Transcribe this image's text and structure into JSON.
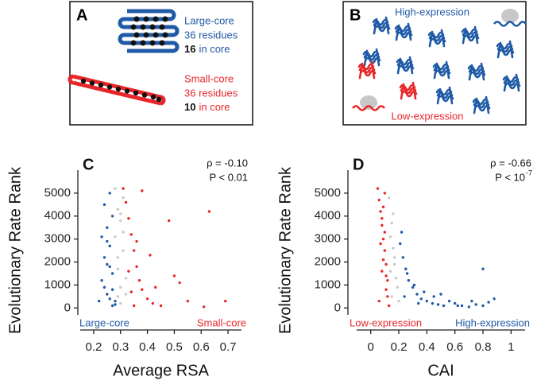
{
  "diagrams": {
    "panel_a": {
      "letter": "A",
      "large": {
        "name": "Large-core",
        "residues": "36 residues",
        "count": "16",
        "suffix": "in core"
      },
      "small": {
        "name": "Small-core",
        "residues": "36 residues",
        "count": "10",
        "suffix": "in core"
      }
    },
    "panel_b": {
      "letter": "B",
      "high": "High-expression",
      "low": "Low-expression"
    }
  },
  "chart_data": [
    {
      "type": "scatter",
      "panel": "C",
      "stats": [
        "ρ = -0.10",
        "P < 0.01"
      ],
      "xlabel": "Average RSA",
      "ylabel": "Evolutionary Rate Rank",
      "xlim": [
        0.15,
        0.75
      ],
      "ylim": [
        -300,
        6000
      ],
      "xticks": [
        0.2,
        0.3,
        0.4,
        0.5,
        0.6,
        0.7
      ],
      "yticks": [
        0,
        1000,
        2000,
        3000,
        4000,
        5000
      ],
      "series": [
        {
          "name": "Large-core",
          "color": "#1f5aa6",
          "corner": "left",
          "x": [
            0.22,
            0.24,
            0.25,
            0.26,
            0.27,
            0.23,
            0.25,
            0.26,
            0.28,
            0.24,
            0.27,
            0.26,
            0.25,
            0.23,
            0.27,
            0.28,
            0.26,
            0.24,
            0.25,
            0.27
          ],
          "values": [
            300,
            4500,
            2900,
            1800,
            800,
            1200,
            3500,
            400,
            150,
            2200,
            4000,
            2700,
            600,
            3100,
            1500,
            300,
            5000,
            900,
            1900,
            100
          ]
        },
        {
          "color": "#c8c8c8",
          "x": [
            0.28,
            0.29,
            0.3,
            0.31,
            0.29,
            0.3,
            0.32,
            0.28,
            0.31,
            0.3,
            0.29,
            0.32,
            0.3,
            0.31,
            0.29
          ],
          "values": [
            5200,
            4300,
            3800,
            2500,
            1700,
            900,
            600,
            3100,
            4800,
            200,
            2200,
            1300,
            4100,
            3300,
            500
          ]
        },
        {
          "name": "Small-core",
          "color": "#e8262a",
          "corner": "right",
          "x": [
            0.31,
            0.32,
            0.33,
            0.34,
            0.35,
            0.36,
            0.37,
            0.38,
            0.4,
            0.42,
            0.45,
            0.48,
            0.5,
            0.55,
            0.61,
            0.63,
            0.34,
            0.36,
            0.33,
            0.38,
            0.41,
            0.35,
            0.43,
            0.52,
            0.69
          ],
          "values": [
            5200,
            4600,
            3900,
            3200,
            2500,
            1800,
            1200,
            800,
            400,
            200,
            100,
            3800,
            1400,
            300,
            50,
            4200,
            700,
            2900,
            1600,
            5100,
            2300,
            100,
            900,
            1100,
            300
          ]
        }
      ]
    },
    {
      "type": "scatter",
      "panel": "D",
      "stats": [
        "ρ = -0.66",
        "P < 10"
      ],
      "stat_exponent": "-7",
      "xlabel": "CAI",
      "ylabel": "Evolutionary Rate Rank",
      "xlim": [
        -0.1,
        1.1
      ],
      "ylim": [
        -300,
        6000
      ],
      "xticks": [
        0,
        0.2,
        0.4,
        0.6,
        0.8,
        1
      ],
      "yticks": [
        0,
        1000,
        2000,
        3000,
        4000,
        5000
      ],
      "series": [
        {
          "name": "Low-expression",
          "color": "#e8262a",
          "corner": "left",
          "x": [
            0.05,
            0.06,
            0.07,
            0.08,
            0.09,
            0.1,
            0.11,
            0.12,
            0.07,
            0.09,
            0.1,
            0.08,
            0.11,
            0.06,
            0.12,
            0.13,
            0.1,
            0.09,
            0.08,
            0.11
          ],
          "values": [
            5200,
            4700,
            4200,
            3600,
            3000,
            2500,
            1900,
            1200,
            2800,
            4400,
            3300,
            1600,
            800,
            300,
            500,
            100,
            5000,
            2100,
            3900,
            1400
          ]
        },
        {
          "color": "#c8c8c8",
          "x": [
            0.13,
            0.15,
            0.16,
            0.17,
            0.14,
            0.18,
            0.19,
            0.16,
            0.15,
            0.2,
            0.17,
            0.14
          ],
          "values": [
            4800,
            3700,
            2600,
            1900,
            3100,
            1300,
            900,
            4100,
            500,
            300,
            2200,
            1600
          ]
        },
        {
          "name": "High-expression",
          "color": "#1f5aa6",
          "corner": "right",
          "x": [
            0.21,
            0.23,
            0.25,
            0.27,
            0.3,
            0.33,
            0.36,
            0.4,
            0.44,
            0.48,
            0.52,
            0.56,
            0.6,
            0.65,
            0.7,
            0.75,
            0.8,
            0.84,
            0.88,
            0.22,
            0.26,
            0.31,
            0.38,
            0.45,
            0.8,
            0.24,
            0.34,
            0.5,
            0.62,
            0.72
          ],
          "values": [
            2800,
            2200,
            1700,
            1200,
            900,
            600,
            400,
            300,
            200,
            150,
            100,
            300,
            200,
            100,
            50,
            150,
            100,
            250,
            400,
            3300,
            1500,
            1000,
            700,
            500,
            1700,
            500,
            200,
            600,
            100,
            300
          ]
        }
      ]
    }
  ]
}
